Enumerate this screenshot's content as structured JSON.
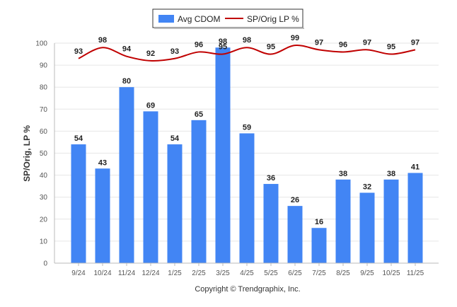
{
  "chart_data": {
    "type": "bar",
    "categories": [
      "9/24",
      "10/24",
      "11/24",
      "12/24",
      "1/25",
      "2/25",
      "3/25",
      "4/25",
      "5/25",
      "6/25",
      "7/25",
      "8/25",
      "9/25",
      "10/25",
      "11/25"
    ],
    "series": [
      {
        "name": "Avg CDOM",
        "type": "bar",
        "color": "#4285F4",
        "values": [
          54,
          43,
          80,
          69,
          54,
          65,
          98,
          59,
          36,
          26,
          16,
          38,
          32,
          38,
          41
        ]
      },
      {
        "name": "SP/Orig LP %",
        "type": "line",
        "color": "#C00000",
        "values": [
          93,
          98,
          94,
          92,
          93,
          96,
          95,
          98,
          95,
          99,
          97,
          96,
          97,
          95,
          97
        ]
      }
    ],
    "ylabel": "SP/Orig, LP %",
    "xlabel": "",
    "ylim": [
      0,
      100
    ],
    "yticks": [
      0,
      10,
      20,
      30,
      40,
      50,
      60,
      70,
      80,
      90,
      100
    ],
    "grid": true,
    "legend_position": "top-center"
  },
  "footer": {
    "copyright": "Copyright © Trendgraphix, Inc."
  }
}
